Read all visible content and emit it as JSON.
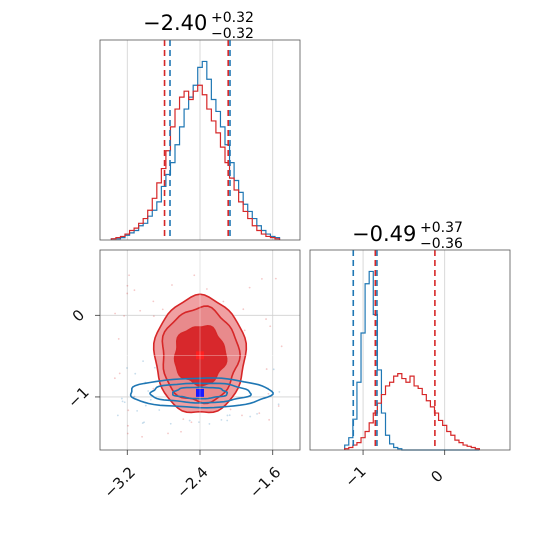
{
  "colors": {
    "blue": "#1f77b4",
    "red": "#d62728",
    "red_fill_light": "#f0a0a2",
    "red_fill_dark": "#d8282c"
  },
  "chart_data": [
    {
      "type": "histogram",
      "panel": "top-left",
      "title": {
        "value": "−2.40",
        "plus": "+0.32",
        "minus": "−0.32"
      },
      "xlim": [
        -3.5,
        -1.3
      ],
      "bins_x": [
        -3.35,
        -3.3,
        -3.25,
        -3.2,
        -3.15,
        -3.1,
        -3.05,
        -3.0,
        -2.95,
        -2.9,
        -2.85,
        -2.8,
        -2.75,
        -2.7,
        -2.65,
        -2.6,
        -2.55,
        -2.5,
        -2.45,
        -2.4,
        -2.35,
        -2.3,
        -2.25,
        -2.2,
        -2.15,
        -2.1,
        -2.05,
        -2.0,
        -1.95,
        -1.9,
        -1.85,
        -1.8,
        -1.75,
        -1.7,
        -1.65,
        -1.6,
        -1.55
      ],
      "series": [
        {
          "color": "blue",
          "quantiles": [
            -2.73,
            -2.07
          ],
          "values": [
            1,
            1,
            2,
            4,
            6,
            8,
            12,
            14,
            20,
            25,
            32,
            45,
            55,
            65,
            80,
            95,
            110,
            120,
            130,
            145,
            150,
            135,
            118,
            108,
            95,
            80,
            65,
            50,
            40,
            30,
            24,
            18,
            12,
            8,
            5,
            3,
            2
          ]
        },
        {
          "color": "red",
          "quantiles": [
            -2.79,
            -2.09
          ],
          "values": [
            1,
            2,
            3,
            5,
            8,
            10,
            14,
            18,
            25,
            35,
            48,
            60,
            75,
            95,
            110,
            120,
            125,
            118,
            125,
            130,
            122,
            110,
            100,
            90,
            78,
            65,
            52,
            42,
            32,
            24,
            18,
            12,
            8,
            5,
            3,
            2,
            1
          ]
        }
      ]
    },
    {
      "type": "contour",
      "panel": "bottom-left",
      "xlim": [
        -3.5,
        -1.3
      ],
      "ylim": [
        -1.65,
        0.8
      ],
      "xticks": [
        "−3.2",
        "−2.4",
        "−1.6"
      ],
      "xtick_values": [
        -3.2,
        -2.4,
        -1.6
      ],
      "yticks": [
        "0",
        "−1"
      ],
      "ytick_values": [
        0,
        -1
      ],
      "crosshair": {
        "x": -2.4,
        "y": -0.49
      },
      "series": [
        {
          "color": "red",
          "center": [
            -2.4,
            -0.49
          ],
          "filled": true,
          "levels": [
            {
              "rx": 0.5,
              "ry": 0.72
            },
            {
              "rx": 0.42,
              "ry": 0.58
            },
            {
              "rx": 0.28,
              "ry": 0.36
            }
          ]
        },
        {
          "color": "blue",
          "center": [
            -2.4,
            -0.95
          ],
          "filled": false,
          "levels": [
            {
              "rx": 0.78,
              "ry": 0.18
            },
            {
              "rx": 0.55,
              "ry": 0.12
            },
            {
              "rx": 0.3,
              "ry": 0.07
            }
          ]
        }
      ]
    },
    {
      "type": "histogram",
      "panel": "bottom-right",
      "title": {
        "value": "−0.49",
        "plus": "+0.37",
        "minus": "−0.36"
      },
      "xlim": [
        -1.65,
        0.8
      ],
      "xticks": [
        "−1",
        "0"
      ],
      "xtick_values": [
        -1,
        0
      ],
      "bins_x": [
        -1.2,
        -1.15,
        -1.1,
        -1.05,
        -1.0,
        -0.95,
        -0.9,
        -0.85,
        -0.8,
        -0.75,
        -0.7,
        -0.65,
        -0.6,
        -0.55,
        -0.5,
        -0.45,
        -0.4,
        -0.35,
        -0.3,
        -0.25,
        -0.2,
        -0.15,
        -0.1,
        -0.05,
        0.0,
        0.05,
        0.1,
        0.15,
        0.2,
        0.25,
        0.3,
        0.35,
        0.4
      ],
      "series": [
        {
          "color": "blue",
          "quantiles": [
            -1.12,
            -0.83
          ],
          "values": [
            4,
            10,
            25,
            55,
            95,
            135,
            145,
            110,
            65,
            30,
            12,
            5,
            2,
            1,
            0,
            0,
            0,
            0,
            0,
            0,
            0,
            0,
            0,
            0,
            0,
            0,
            0,
            0,
            0,
            0,
            0,
            0,
            0
          ]
        },
        {
          "color": "red",
          "quantiles": [
            -0.85,
            -0.12
          ],
          "values": [
            1,
            2,
            4,
            6,
            10,
            15,
            22,
            30,
            38,
            45,
            52,
            55,
            60,
            62,
            58,
            55,
            60,
            52,
            50,
            45,
            40,
            35,
            30,
            24,
            20,
            15,
            12,
            8,
            6,
            4,
            3,
            2,
            1
          ]
        }
      ]
    }
  ]
}
